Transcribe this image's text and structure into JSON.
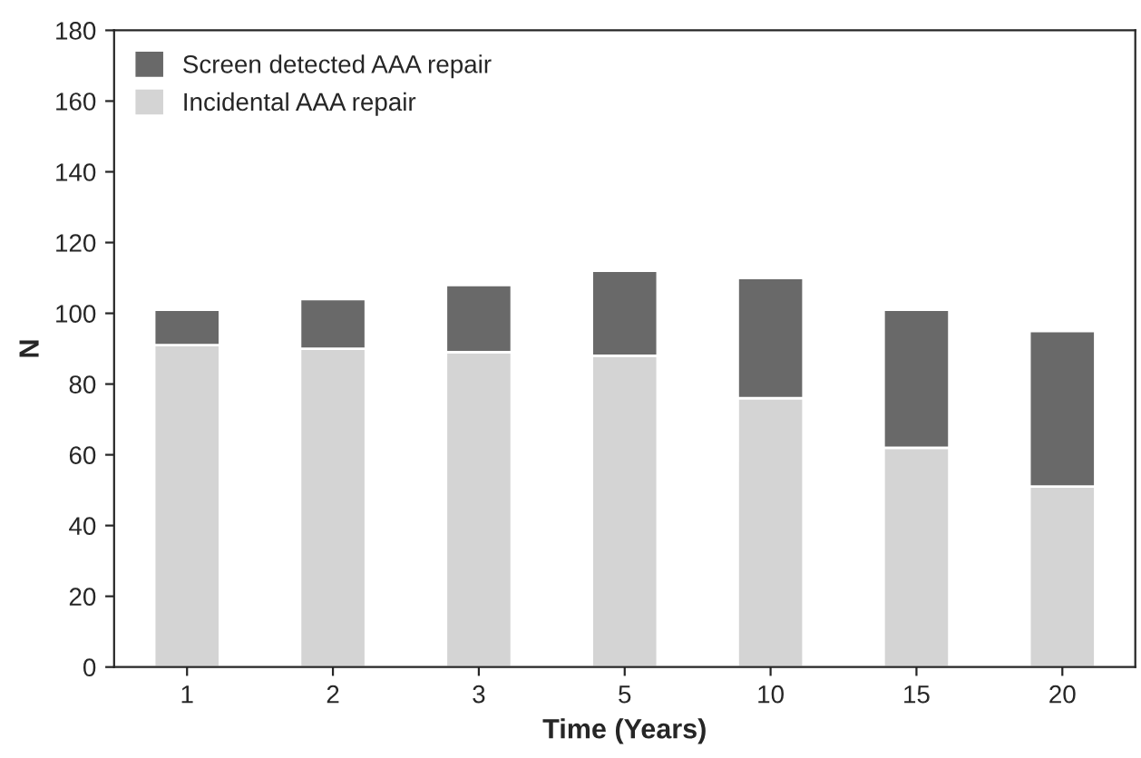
{
  "chart_data": {
    "type": "bar",
    "stacked": true,
    "xlabel": "Time (Years)",
    "ylabel": "N",
    "categories": [
      "1",
      "2",
      "3",
      "5",
      "10",
      "15",
      "20"
    ],
    "series": [
      {
        "name": "Incidental AAA repair",
        "color": "#d4d4d4",
        "values": [
          91,
          90,
          89,
          88,
          76,
          62,
          51
        ]
      },
      {
        "name": "Screen detected AAA repair",
        "color": "#696969",
        "values": [
          10,
          14,
          19,
          24,
          34,
          39,
          44
        ]
      }
    ],
    "ylim": [
      0,
      180
    ],
    "yticks": [
      0,
      20,
      40,
      60,
      80,
      100,
      120,
      140,
      160,
      180
    ],
    "grid": false,
    "legend": "top left"
  }
}
